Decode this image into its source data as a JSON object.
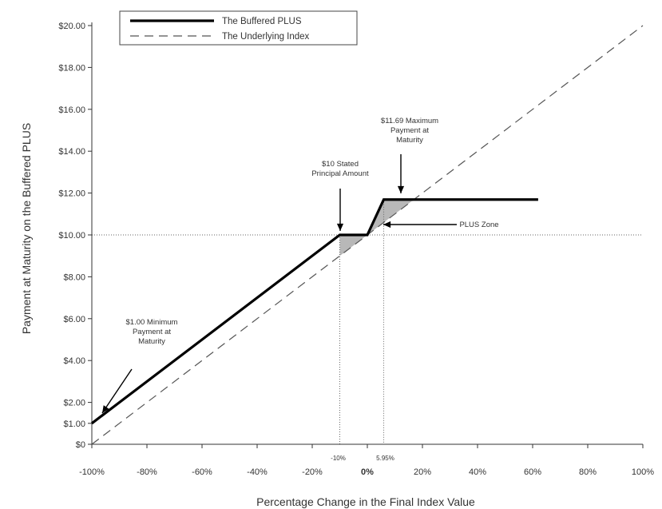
{
  "chart_data": {
    "type": "line",
    "xlabel": "Percentage Change in the Final Index Value",
    "ylabel": "Payment at Maturity on the Buffered PLUS",
    "xlim": [
      -100,
      100
    ],
    "ylim": [
      0,
      20
    ],
    "x_ticks": [
      {
        "value": -100,
        "label": "-100%"
      },
      {
        "value": -80,
        "label": "-80%"
      },
      {
        "value": -60,
        "label": "-60%"
      },
      {
        "value": -40,
        "label": "-40%"
      },
      {
        "value": -20,
        "label": "-20%"
      },
      {
        "value": 0,
        "label": "0%"
      },
      {
        "value": 20,
        "label": "20%"
      },
      {
        "value": 40,
        "label": "40%"
      },
      {
        "value": 60,
        "label": "60%"
      },
      {
        "value": 80,
        "label": "80%"
      },
      {
        "value": 100,
        "label": "100%"
      }
    ],
    "y_ticks": [
      {
        "value": 0,
        "label": "$0"
      },
      {
        "value": 1,
        "label": "$1.00"
      },
      {
        "value": 2,
        "label": "$2.00"
      },
      {
        "value": 4,
        "label": "$4.00"
      },
      {
        "value": 6,
        "label": "$6.00"
      },
      {
        "value": 8,
        "label": "$8.00"
      },
      {
        "value": 10,
        "label": "$10.00"
      },
      {
        "value": 12,
        "label": "$12.00"
      },
      {
        "value": 14,
        "label": "$14.00"
      },
      {
        "value": 16,
        "label": "$16.00"
      },
      {
        "value": 18,
        "label": "$18.00"
      },
      {
        "value": 20,
        "label": "$20.00"
      }
    ],
    "series": [
      {
        "name": "The Buffered PLUS",
        "style": "solid",
        "color": "#000000",
        "x": [
          -100,
          -10,
          0,
          5.95,
          62
        ],
        "y": [
          1,
          10,
          10,
          11.69,
          11.69
        ]
      },
      {
        "name": "The Underlying Index",
        "style": "dashed",
        "color": "#555555",
        "x": [
          -100,
          100
        ],
        "y": [
          0,
          20
        ]
      }
    ],
    "reference_lines": {
      "y": 10,
      "x": [
        -10,
        5.95
      ]
    },
    "extra_x_labels": [
      {
        "value": -10,
        "label": "-10%"
      },
      {
        "value": 5.95,
        "label": "5.95%"
      }
    ],
    "annotations": [
      {
        "lines": [
          "$1.00 Minimum",
          "Payment at",
          "Maturity"
        ]
      },
      {
        "lines": [
          "$10 Stated",
          "Principal Amount"
        ]
      },
      {
        "lines": [
          "$11.69 Maximum",
          "Payment at",
          "Maturity"
        ]
      },
      {
        "lines": [
          "PLUS Zone"
        ]
      }
    ],
    "legend_position": "top-left",
    "grid": false,
    "colors": {
      "plus_line": "#000000",
      "index_line": "#555555",
      "shade": "#b8b8b8"
    }
  }
}
